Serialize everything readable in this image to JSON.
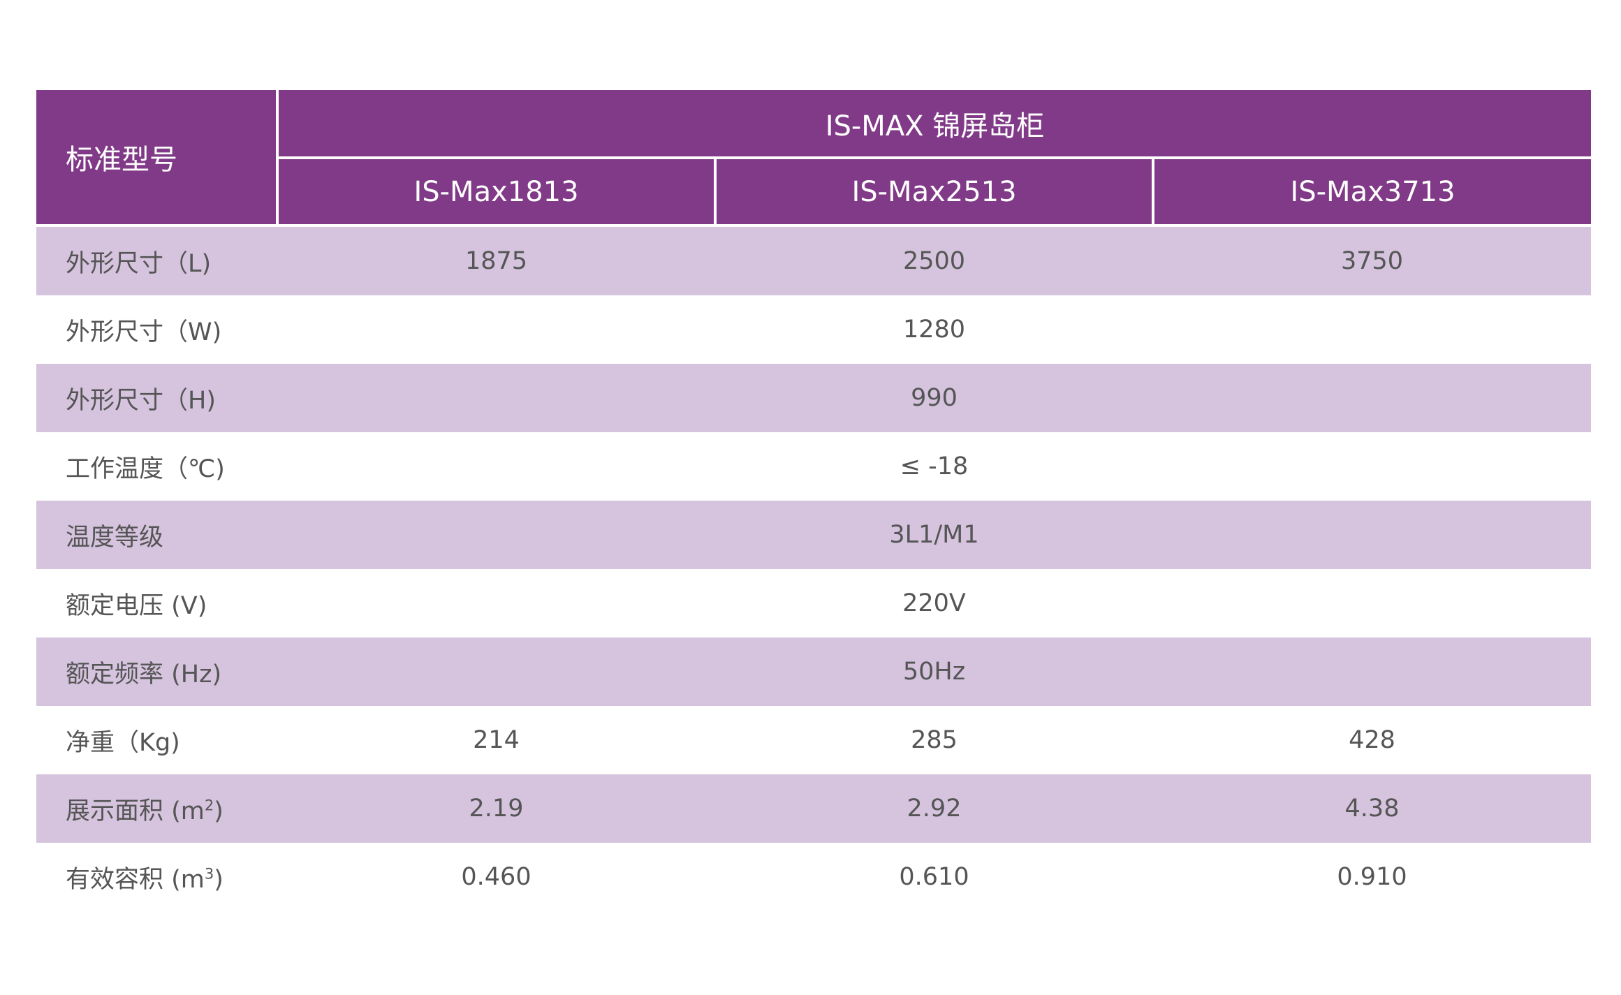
{
  "table": {
    "header_label": "标准型号",
    "series_title": "IS-MAX 锦屏岛柜",
    "models": [
      "IS-Max1813",
      "IS-Max2513",
      "IS-Max3713"
    ],
    "rows": [
      {
        "label": "外形尺寸（L)",
        "values": [
          "1875",
          "2500",
          "3750"
        ],
        "merged": false
      },
      {
        "label": "外形尺寸（W)",
        "value": "1280",
        "merged": true
      },
      {
        "label": "外形尺寸（H)",
        "value": "990",
        "merged": true
      },
      {
        "label": "工作温度（℃)",
        "value": "≤ -18",
        "merged": true
      },
      {
        "label": "温度等级",
        "value": "3L1/M1",
        "merged": true
      },
      {
        "label": "额定电压 (V)",
        "value": "220V",
        "merged": true
      },
      {
        "label": "额定频率 (Hz)",
        "value": "50Hz",
        "merged": true
      },
      {
        "label": "净重（Kg)",
        "values": [
          "214",
          "285",
          "428"
        ],
        "merged": false
      },
      {
        "label_prefix": "展示面积 (m",
        "label_sup": "2",
        "label_suffix": ")",
        "values": [
          "2.19",
          "2.92",
          "4.38"
        ],
        "merged": false
      },
      {
        "label_prefix": "有效容积 (m",
        "label_sup": "3",
        "label_suffix": ")",
        "values": [
          "0.460",
          "0.610",
          "0.910"
        ],
        "merged": false
      }
    ]
  },
  "colors": {
    "header_bg": "#813a87",
    "stripe_bg": "#d6c4df",
    "text": "#555555"
  }
}
